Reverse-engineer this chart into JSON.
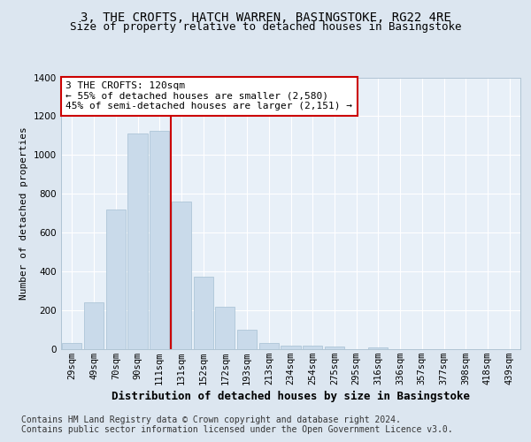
{
  "title": "3, THE CROFTS, HATCH WARREN, BASINGSTOKE, RG22 4RE",
  "subtitle": "Size of property relative to detached houses in Basingstoke",
  "xlabel": "Distribution of detached houses by size in Basingstoke",
  "ylabel": "Number of detached properties",
  "bar_labels": [
    "29sqm",
    "49sqm",
    "70sqm",
    "90sqm",
    "111sqm",
    "131sqm",
    "152sqm",
    "172sqm",
    "193sqm",
    "213sqm",
    "234sqm",
    "254sqm",
    "275sqm",
    "295sqm",
    "316sqm",
    "336sqm",
    "357sqm",
    "377sqm",
    "398sqm",
    "418sqm",
    "439sqm"
  ],
  "bar_values": [
    30,
    240,
    720,
    1110,
    1125,
    760,
    375,
    220,
    100,
    30,
    20,
    18,
    12,
    0,
    10,
    0,
    0,
    0,
    0,
    0,
    0
  ],
  "bar_color": "#c9daea",
  "bar_edge_color": "#aec6d8",
  "annotation_text": "3 THE CROFTS: 120sqm\n← 55% of detached houses are smaller (2,580)\n45% of semi-detached houses are larger (2,151) →",
  "annotation_box_facecolor": "#ffffff",
  "annotation_box_edgecolor": "#cc0000",
  "red_line_index": 4.5,
  "ylim": [
    0,
    1400
  ],
  "yticks": [
    0,
    200,
    400,
    600,
    800,
    1000,
    1200,
    1400
  ],
  "fig_bg_color": "#dce6f0",
  "plot_bg_color": "#e8f0f8",
  "grid_color": "#ffffff",
  "title_fontsize": 10,
  "subtitle_fontsize": 9,
  "xlabel_fontsize": 9,
  "ylabel_fontsize": 8,
  "tick_fontsize": 7.5,
  "annotation_fontsize": 8,
  "footer_fontsize": 7,
  "footer_line1": "Contains HM Land Registry data © Crown copyright and database right 2024.",
  "footer_line2": "Contains public sector information licensed under the Open Government Licence v3.0."
}
